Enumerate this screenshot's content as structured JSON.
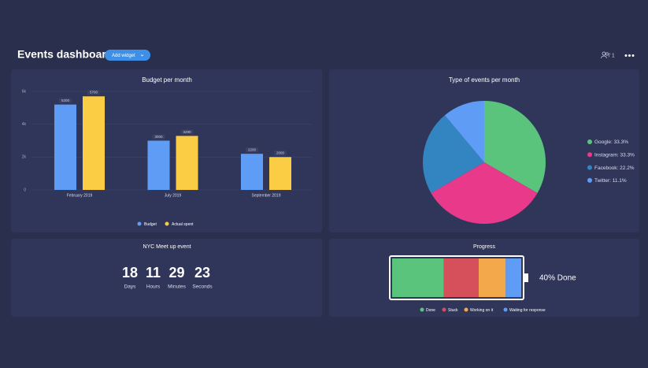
{
  "header": {
    "title": "Events dashboard",
    "button": "Add widget",
    "users": "/ 1"
  },
  "chart_data": [
    {
      "type": "bar",
      "title": "Budget per month",
      "categories": [
        "February 2019",
        "July 2019",
        "September 2019"
      ],
      "series": [
        {
          "name": "Budget",
          "color": "#5f9cf5",
          "values": [
            5200,
            3000,
            2200
          ]
        },
        {
          "name": "Actual spent",
          "color": "#fbcd45",
          "values": [
            5700,
            3290,
            2000
          ]
        }
      ],
      "ylim": [
        0,
        6000
      ],
      "yticks": [
        0,
        {
          "value": 2000,
          "label": "2k"
        },
        {
          "value": 4000,
          "label": "4k"
        },
        {
          "value": 6000,
          "label": "6k"
        }
      ],
      "grid": true
    },
    {
      "type": "pie",
      "title": "Type of events per month",
      "labels": [
        "Google: 33.3%",
        "Instagram: 33.3%",
        "Facebook: 22.2%",
        "Twitter: 11.1%"
      ],
      "values": [
        33.3,
        33.3,
        22.2,
        11.1
      ],
      "colors": [
        "#5ac47d",
        "#e8398a",
        "#3385c1",
        "#5f9cf5"
      ]
    }
  ],
  "countdown": {
    "title": "NYC Meet up event",
    "units": [
      {
        "value": 18,
        "label": "Days"
      },
      {
        "value": 11,
        "label": "Hours"
      },
      {
        "value": 29,
        "label": "Minutes"
      },
      {
        "value": 23,
        "label": "Seconds"
      }
    ]
  },
  "progress": {
    "title": "Progress",
    "label": "40% Done",
    "segments": [
      {
        "name": "Done",
        "color": "#5ac47d",
        "value": 40
      },
      {
        "name": "Stuck",
        "color": "#d5505a",
        "value": 27
      },
      {
        "name": "Working on it",
        "color": "#f3a84b",
        "value": 21
      },
      {
        "name": "Waiting for response",
        "color": "#5f9cf5",
        "value": 12
      }
    ]
  }
}
